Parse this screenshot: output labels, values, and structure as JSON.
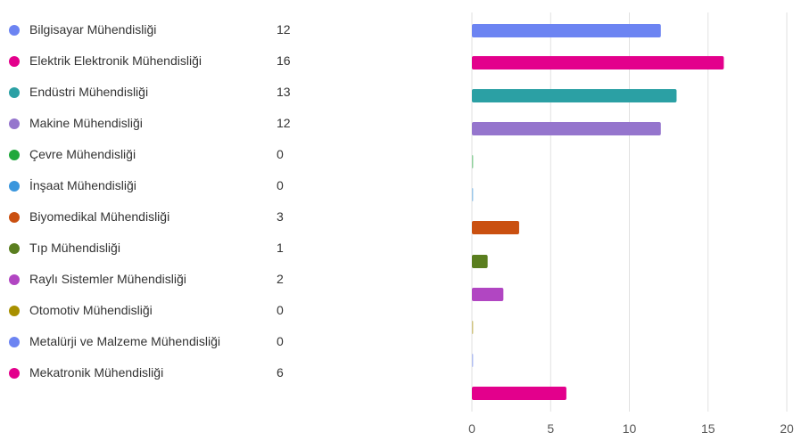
{
  "chart_data": {
    "type": "bar",
    "orientation": "horizontal",
    "categories": [
      "Bilgisayar Mühendisliği",
      "Elektrik Elektronik Mühendisliği",
      "Endüstri Mühendisliği",
      "Makine Mühendisliği",
      "Çevre Mühendisliği",
      "İnşaat Mühendisliği",
      "Biyomedikal Mühendisliği",
      "Tıp Mühendisliği",
      "Raylı Sistemler Mühendisliği",
      "Otomotiv Mühendisliği",
      "Metalürji ve Malzeme Mühendisliği",
      "Mekatronik Mühendisliği"
    ],
    "values": [
      12,
      16,
      13,
      12,
      0,
      0,
      3,
      1,
      2,
      0,
      0,
      6
    ],
    "colors": [
      "#6c84f2",
      "#e3008c",
      "#2ba0a4",
      "#9575cd",
      "#20a83c",
      "#3a96dd",
      "#ca5010",
      "#5a7e1f",
      "#b146c2",
      "#a89000",
      "#6c84f2",
      "#e3008c"
    ],
    "xlim": [
      0,
      20
    ],
    "xticks": [
      0,
      5,
      10,
      15,
      20
    ],
    "grid": true,
    "legend_position": "left"
  }
}
